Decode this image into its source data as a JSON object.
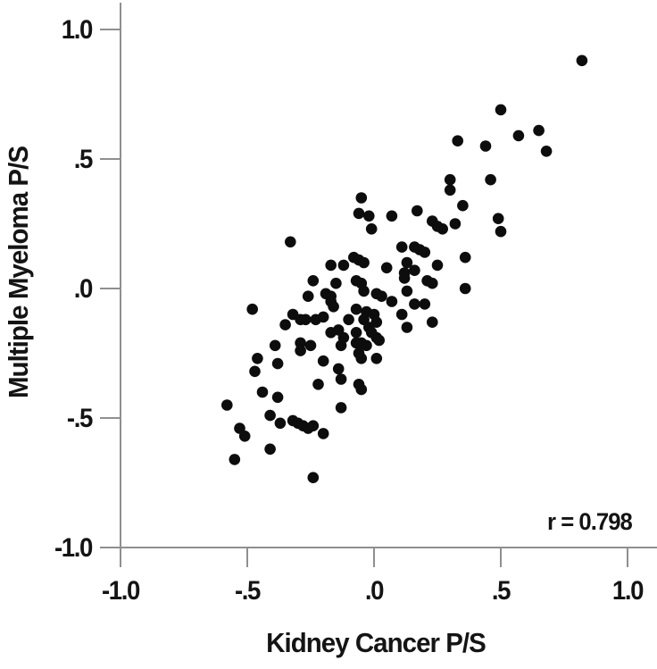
{
  "figure": {
    "background_color": "#ffffff",
    "axis_color": "#8f8f8f",
    "dot_color": "#0d0d0d",
    "text_color": "#141414",
    "annotation": "r = 0.798",
    "x_axis": {
      "label": "Kidney Cancer P/S",
      "tick_labels": [
        "-1.0",
        "-.5",
        ".0",
        ".5",
        "1.0"
      ],
      "tick_values": [
        -1.0,
        -0.5,
        0.0,
        0.5,
        1.0
      ]
    },
    "y_axis": {
      "label": "Multiple Myeloma P/S",
      "tick_labels": [
        "1.0",
        ".5",
        ".0",
        "-.5",
        "-1.0"
      ],
      "tick_values": [
        1.0,
        0.5,
        0.0,
        -0.5,
        -1.0
      ]
    }
  },
  "chart_data": {
    "type": "scatter",
    "title": "",
    "xlabel": "Kidney Cancer P/S",
    "ylabel": "Multiple Myeloma P/S",
    "annotation": "r = 0.798",
    "correlation_r": 0.798,
    "xlim": [
      -1.0,
      1.0
    ],
    "ylim": [
      -1.0,
      1.0
    ],
    "grid": false,
    "marker": {
      "shape": "circle",
      "radius_px": 6.3,
      "color": "#0d0d0d"
    },
    "points": [
      [
        0.82,
        0.88
      ],
      [
        0.5,
        0.69
      ],
      [
        0.65,
        0.61
      ],
      [
        0.57,
        0.59
      ],
      [
        0.68,
        0.53
      ],
      [
        0.33,
        0.57
      ],
      [
        0.44,
        0.55
      ],
      [
        0.3,
        0.42
      ],
      [
        0.46,
        0.42
      ],
      [
        0.3,
        0.38
      ],
      [
        0.35,
        0.32
      ],
      [
        -0.05,
        0.35
      ],
      [
        -0.06,
        0.29
      ],
      [
        -0.02,
        0.28
      ],
      [
        -0.01,
        0.23
      ],
      [
        0.07,
        0.28
      ],
      [
        0.17,
        0.3
      ],
      [
        0.23,
        0.26
      ],
      [
        0.25,
        0.24
      ],
      [
        0.27,
        0.23
      ],
      [
        0.32,
        0.25
      ],
      [
        0.49,
        0.27
      ],
      [
        0.5,
        0.22
      ],
      [
        -0.33,
        0.18
      ],
      [
        0.11,
        0.16
      ],
      [
        0.16,
        0.16
      ],
      [
        0.18,
        0.15
      ],
      [
        0.2,
        0.14
      ],
      [
        0.36,
        0.12
      ],
      [
        0.25,
        0.09
      ],
      [
        -0.08,
        0.12
      ],
      [
        -0.06,
        0.11
      ],
      [
        -0.04,
        0.1
      ],
      [
        -0.12,
        0.09
      ],
      [
        -0.17,
        0.09
      ],
      [
        0.05,
        0.08
      ],
      [
        0.13,
        0.1
      ],
      [
        0.12,
        0.06
      ],
      [
        0.16,
        0.07
      ],
      [
        -0.15,
        0.02
      ],
      [
        -0.07,
        0.03
      ],
      [
        -0.05,
        0.02
      ],
      [
        -0.04,
        -0.01
      ],
      [
        -0.24,
        0.03
      ],
      [
        -0.26,
        -0.03
      ],
      [
        0.12,
        0.04
      ],
      [
        0.13,
        -0.01
      ],
      [
        0.36,
        0.0
      ],
      [
        0.21,
        0.03
      ],
      [
        0.23,
        0.02
      ],
      [
        -0.19,
        -0.02
      ],
      [
        -0.17,
        -0.03
      ],
      [
        -0.17,
        -0.05
      ],
      [
        -0.16,
        -0.07
      ],
      [
        -0.48,
        -0.08
      ],
      [
        -0.32,
        -0.1
      ],
      [
        -0.29,
        -0.12
      ],
      [
        -0.27,
        -0.12
      ],
      [
        -0.23,
        -0.12
      ],
      [
        -0.2,
        -0.11
      ],
      [
        -0.35,
        -0.14
      ],
      [
        0.01,
        -0.02
      ],
      [
        0.03,
        -0.03
      ],
      [
        0.07,
        -0.05
      ],
      [
        -0.07,
        -0.08
      ],
      [
        -0.03,
        -0.09
      ],
      [
        0.0,
        -0.1
      ],
      [
        0.11,
        -0.1
      ],
      [
        0.13,
        -0.15
      ],
      [
        0.23,
        -0.13
      ],
      [
        -0.1,
        -0.12
      ],
      [
        -0.04,
        -0.12
      ],
      [
        -0.02,
        -0.15
      ],
      [
        0.01,
        -0.13
      ],
      [
        0.16,
        -0.06
      ],
      [
        0.2,
        -0.06
      ],
      [
        -0.14,
        -0.16
      ],
      [
        -0.17,
        -0.17
      ],
      [
        0.01,
        -0.19
      ],
      [
        -0.01,
        -0.17
      ],
      [
        -0.07,
        -0.17
      ],
      [
        -0.12,
        -0.19
      ],
      [
        -0.07,
        -0.21
      ],
      [
        -0.05,
        -0.21
      ],
      [
        -0.03,
        -0.22
      ],
      [
        0.02,
        -0.2
      ],
      [
        -0.13,
        -0.22
      ],
      [
        -0.06,
        -0.25
      ],
      [
        -0.05,
        -0.27
      ],
      [
        0.01,
        -0.27
      ],
      [
        -0.14,
        -0.31
      ],
      [
        -0.13,
        -0.35
      ],
      [
        -0.06,
        -0.37
      ],
      [
        -0.05,
        -0.39
      ],
      [
        -0.13,
        -0.46
      ],
      [
        -0.46,
        -0.27
      ],
      [
        -0.47,
        -0.32
      ],
      [
        -0.39,
        -0.22
      ],
      [
        -0.38,
        -0.29
      ],
      [
        -0.29,
        -0.21
      ],
      [
        -0.25,
        -0.22
      ],
      [
        -0.29,
        -0.24
      ],
      [
        -0.2,
        -0.28
      ],
      [
        -0.22,
        -0.37
      ],
      [
        -0.44,
        -0.4
      ],
      [
        -0.38,
        -0.42
      ],
      [
        -0.58,
        -0.45
      ],
      [
        -0.41,
        -0.49
      ],
      [
        -0.37,
        -0.52
      ],
      [
        -0.32,
        -0.51
      ],
      [
        -0.3,
        -0.52
      ],
      [
        -0.28,
        -0.53
      ],
      [
        -0.26,
        -0.54
      ],
      [
        -0.24,
        -0.53
      ],
      [
        -0.53,
        -0.54
      ],
      [
        -0.51,
        -0.57
      ],
      [
        -0.41,
        -0.62
      ],
      [
        -0.55,
        -0.66
      ],
      [
        -0.24,
        -0.73
      ],
      [
        -0.2,
        -0.56
      ]
    ]
  }
}
